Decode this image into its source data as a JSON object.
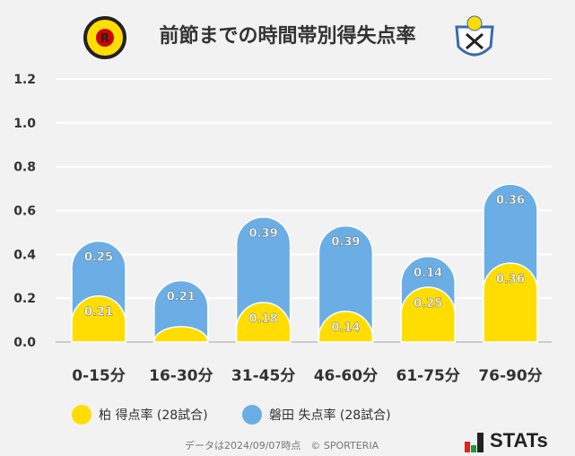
{
  "chart_data": {
    "type": "bar",
    "stacked": true,
    "title": "前節までの時間帯別得失点率",
    "categories": [
      "0-15分",
      "16-30分",
      "31-45分",
      "46-60分",
      "61-75分",
      "76-90分"
    ],
    "series": [
      {
        "name": "柏 得点率 (28試合)",
        "color": "#ffdd00",
        "values": [
          0.21,
          0.07,
          0.18,
          0.14,
          0.25,
          0.36
        ],
        "labels": [
          "0.21",
          "",
          "0.18",
          "0.14",
          "0.25",
          "0.36"
        ]
      },
      {
        "name": "磐田 失点率 (28試合)",
        "color": "#6aaee5",
        "values": [
          0.25,
          0.21,
          0.39,
          0.39,
          0.14,
          0.36
        ],
        "labels": [
          "0.25",
          "0.21",
          "0.39",
          "0.39",
          "0.14",
          "0.36"
        ]
      }
    ],
    "yticks": [
      "0.0",
      "0.2",
      "0.4",
      "0.6",
      "0.8",
      "1.0",
      "1.2"
    ],
    "ylim": [
      0,
      1.2
    ],
    "grid": true,
    "legend": "bottom"
  },
  "logos": {
    "home": "KASHIWA REYSOL",
    "away": "JUBILO IWATA"
  },
  "footer": "データは2024/09/07時点　© SPORTERIA",
  "brand": "STATs"
}
